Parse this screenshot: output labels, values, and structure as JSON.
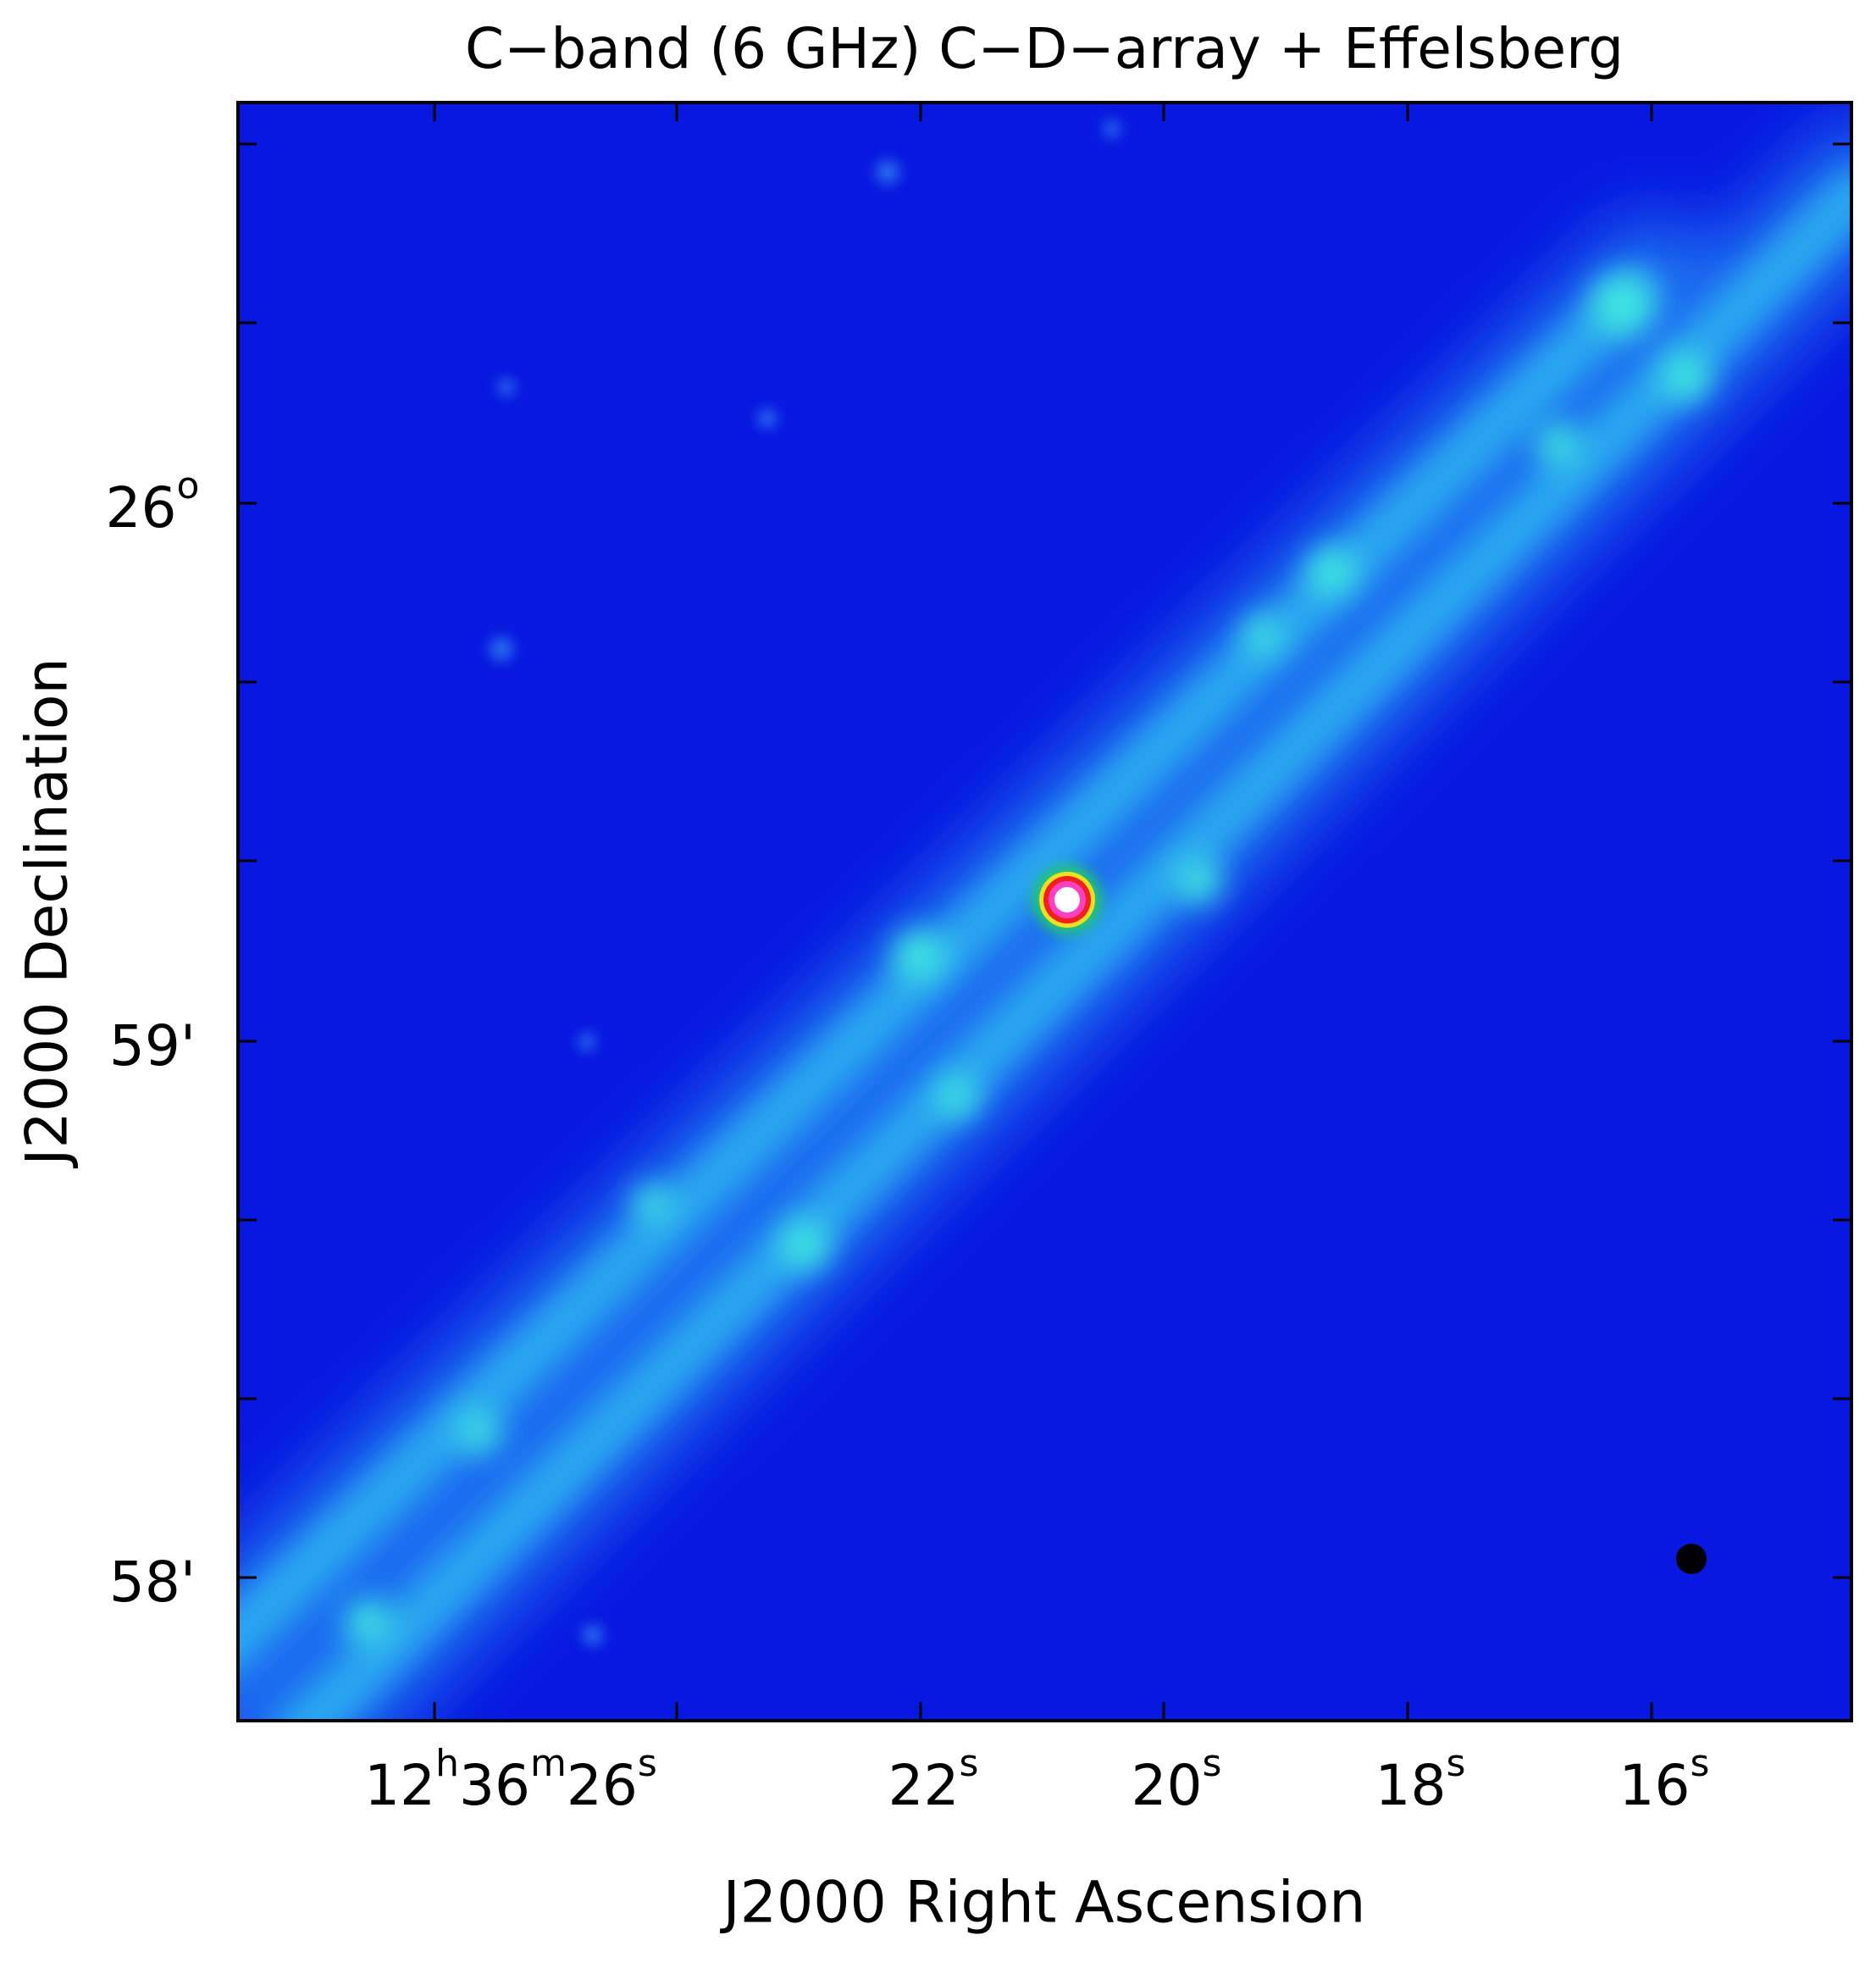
{
  "figure": {
    "title": "C−band (6 GHz) C−D−array + Effelsberg",
    "x_axis": {
      "label": "J2000 Right Ascension",
      "tick_labels": [
        [
          "12",
          "h",
          "36",
          "m",
          "26",
          "s"
        ],
        [
          "22",
          "s"
        ],
        [
          "20",
          "s"
        ],
        [
          "18",
          "s"
        ],
        [
          "16",
          "s"
        ]
      ]
    },
    "y_axis": {
      "label": "J2000 Declination",
      "tick_labels": [
        [
          "26",
          "o"
        ],
        [
          "59'"
        ],
        [
          "58'"
        ]
      ]
    }
  }
}
